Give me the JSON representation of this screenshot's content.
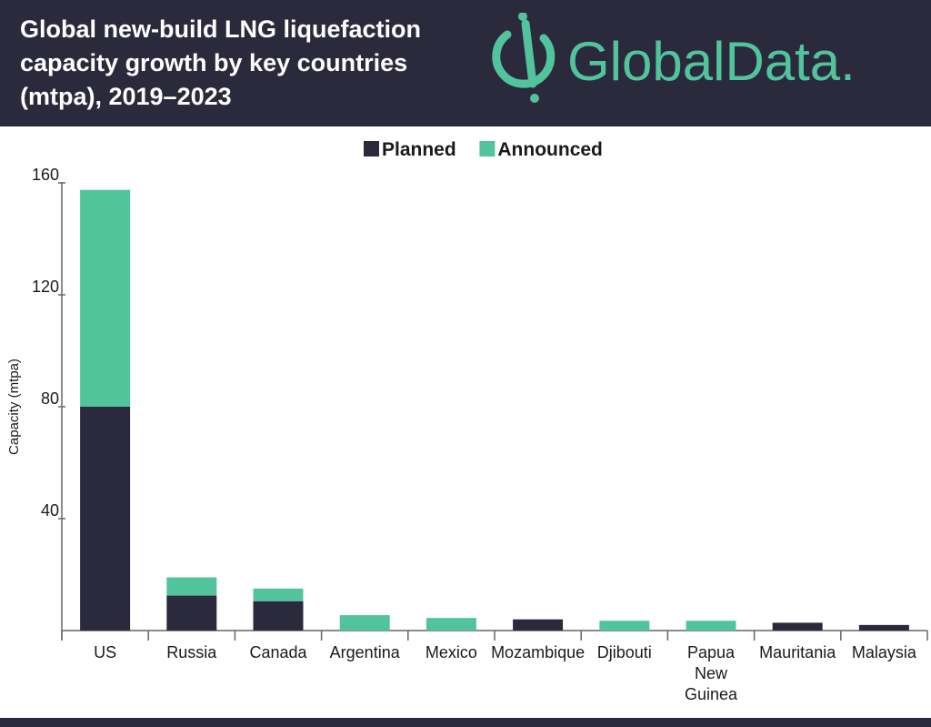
{
  "header": {
    "title_lines": [
      "Global new-build LNG liquefaction",
      "capacity growth by key countries",
      "(mtpa), 2019–2023"
    ],
    "brand": "GlobalData."
  },
  "colors": {
    "dark": "#2b2a3d",
    "accent": "#52c49c",
    "axis": "#666666"
  },
  "chart_data": {
    "type": "bar",
    "stacked": true,
    "title": "Global new-build LNG liquefaction capacity growth by key countries (mtpa), 2019–2023",
    "ylabel": "Capacity (mtpa)",
    "xlabel": "",
    "ylim": [
      0,
      160
    ],
    "yticks": [
      40,
      80,
      120,
      160
    ],
    "legend_position": "top-center",
    "grid": false,
    "categories": [
      [
        "US"
      ],
      [
        "Russia"
      ],
      [
        "Canada"
      ],
      [
        "Argentina"
      ],
      [
        "Mexico"
      ],
      [
        "Mozambique"
      ],
      [
        "Djibouti"
      ],
      [
        "Papua",
        "New",
        "Guinea"
      ],
      [
        "Mauritania"
      ],
      [
        "Malaysia"
      ]
    ],
    "series": [
      {
        "name": "Planned",
        "color": "#2b2a3d",
        "values": [
          80,
          12.5,
          10.5,
          0,
          0,
          4,
          0,
          0,
          2.8,
          2
        ]
      },
      {
        "name": "Announced",
        "color": "#52c49c",
        "values": [
          77.5,
          6.5,
          4.5,
          5.5,
          4.5,
          0,
          3.5,
          3.5,
          0,
          0
        ]
      }
    ]
  }
}
